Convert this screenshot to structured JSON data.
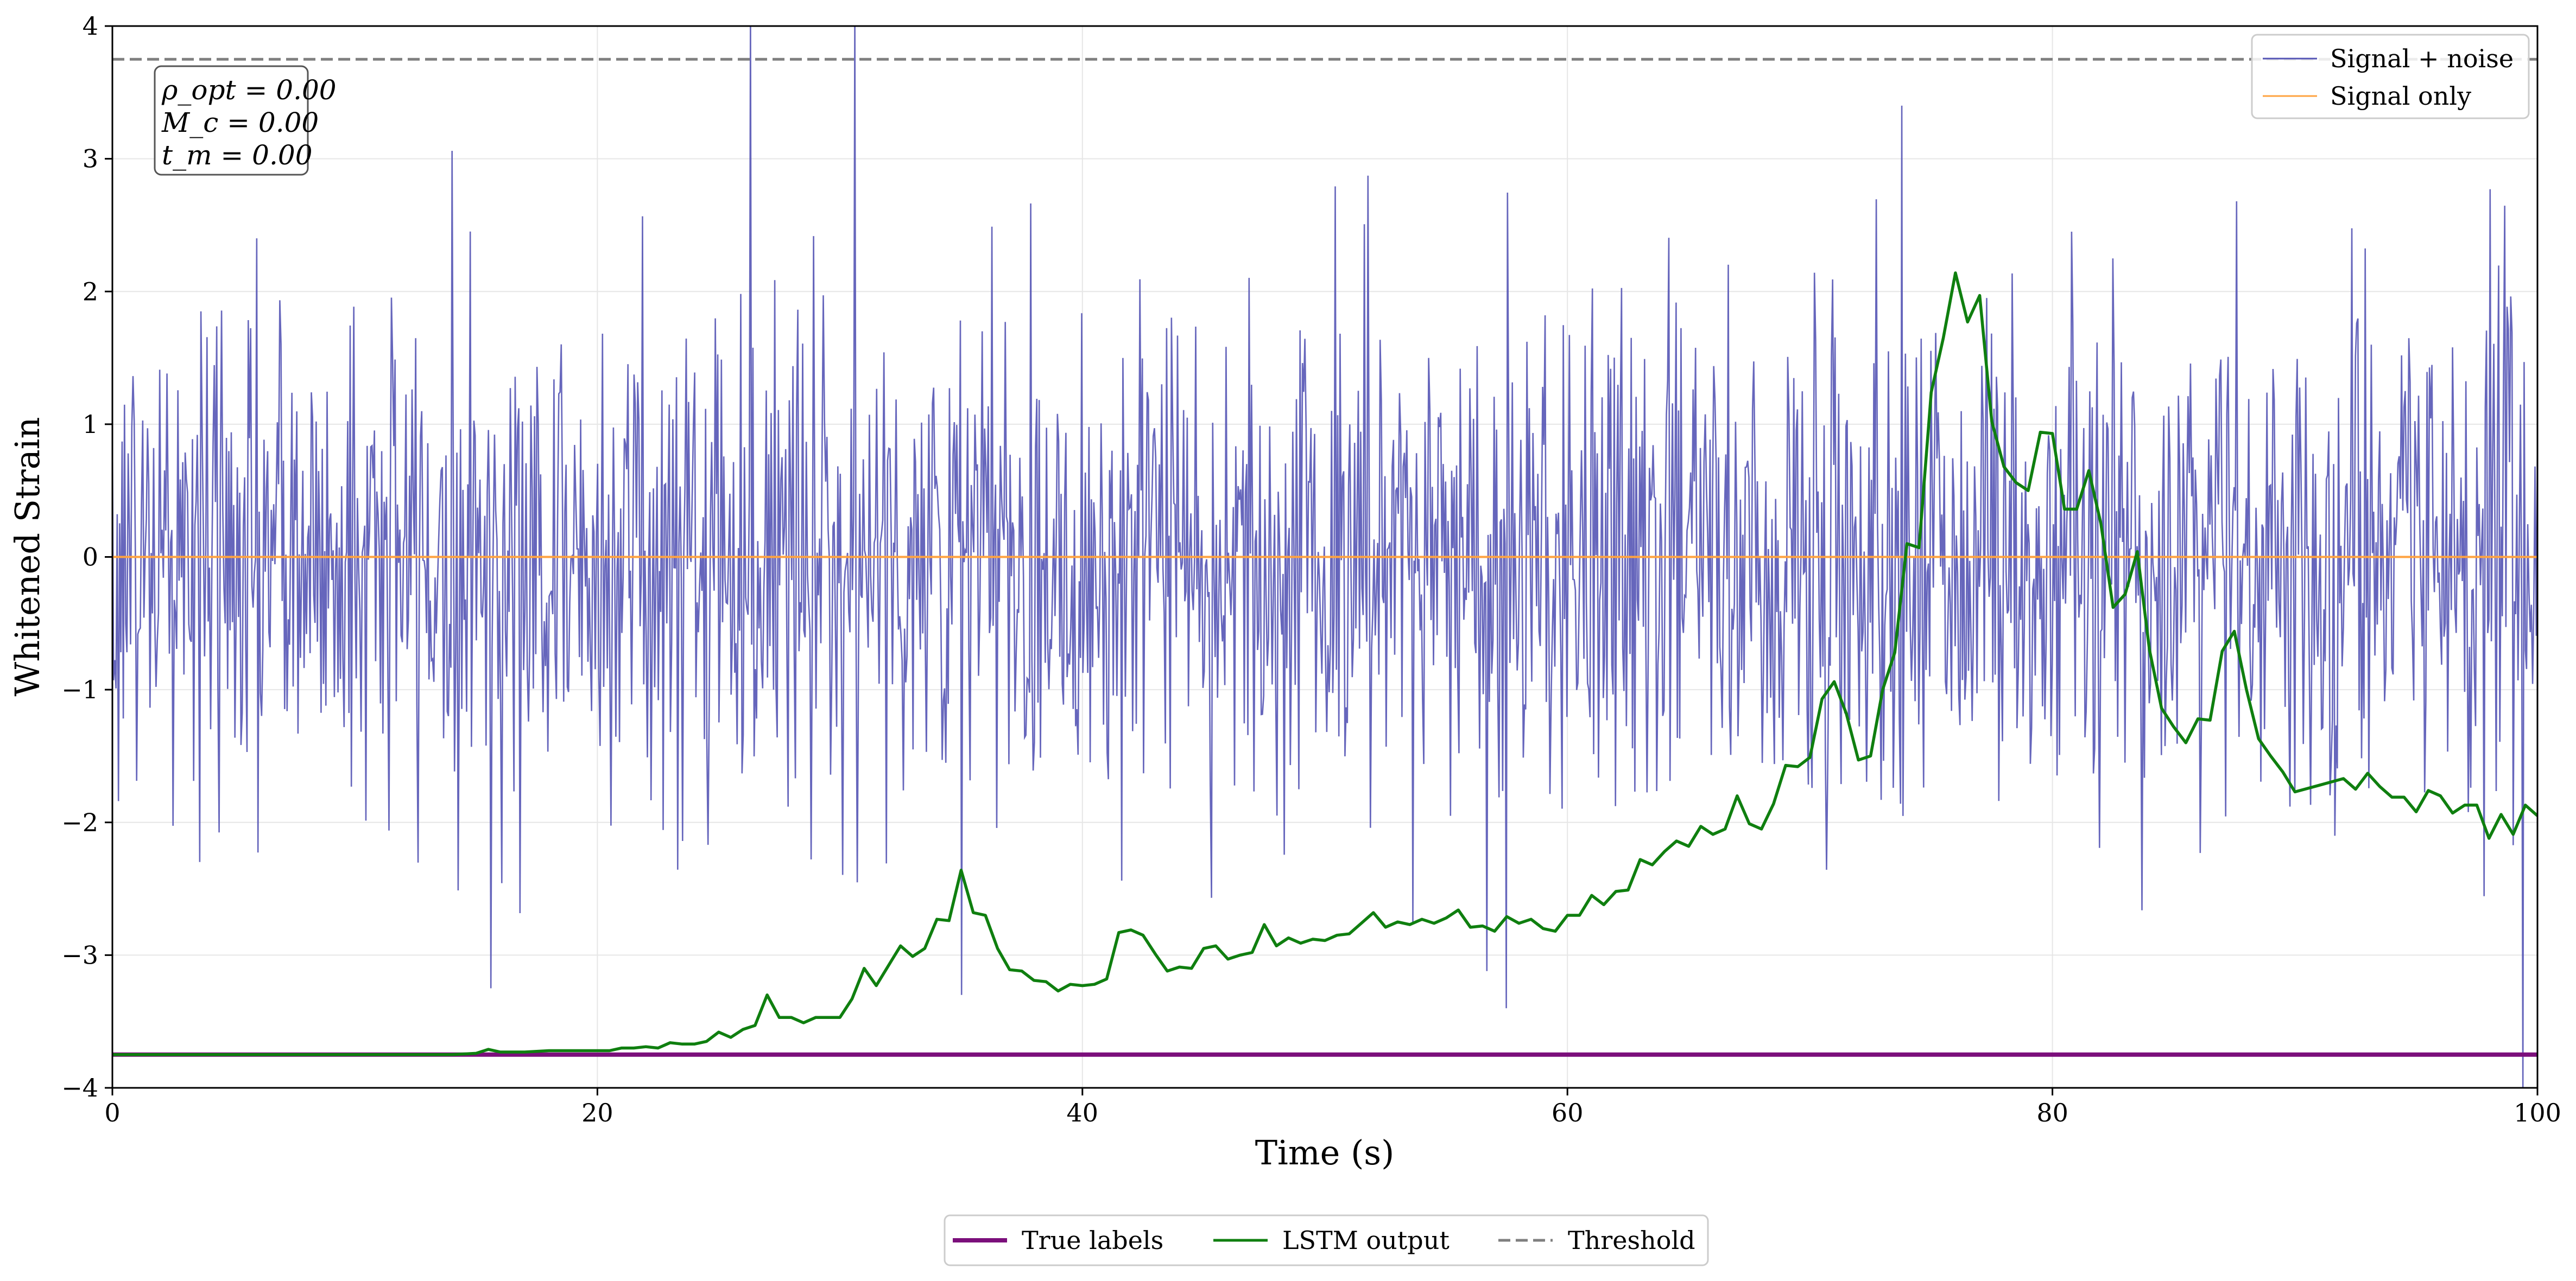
{
  "chart_data": {
    "type": "line",
    "title": "",
    "xlabel": "Time (s)",
    "ylabel": "Whitened Strain",
    "xlim": [
      0,
      100
    ],
    "ylim": [
      -4,
      4
    ],
    "xticks": [
      0,
      20,
      40,
      60,
      80,
      100
    ],
    "yticks": [
      -4,
      -3,
      -2,
      -1,
      0,
      1,
      2,
      3,
      4
    ],
    "grid": true,
    "colors": {
      "noisy": "#5555b5",
      "signal": "#ffa340",
      "labels": "#7b0f7b",
      "lstm": "#0f7f0f",
      "threshold": "#7f7f7f"
    },
    "annotation": [
      "ρ_opt = 0.00",
      "M_c = 0.00",
      "t_m = 0.00"
    ],
    "legend_upper": {
      "placement": "top-right",
      "entries": [
        "Signal + noise",
        "Signal only"
      ]
    },
    "legend_lower": {
      "placement": "bottom-center",
      "entries": [
        "True labels",
        "LSTM output",
        "Threshold"
      ]
    },
    "series": [
      {
        "name": "Signal + noise",
        "kind": "noise",
        "samples": 2000,
        "std": 1.0,
        "spikes": [
          {
            "x": 15.6,
            "y": -3.25
          },
          {
            "x": 26.3,
            "y": 4.1
          },
          {
            "x": 30.6,
            "y": 4.1
          },
          {
            "x": 35.0,
            "y": -3.3
          },
          {
            "x": 57.5,
            "y": -3.4
          },
          {
            "x": 73.8,
            "y": 3.4
          },
          {
            "x": 99.4,
            "y": -4.0
          }
        ]
      },
      {
        "name": "Signal only",
        "x": [
          0,
          100
        ],
        "y": [
          0,
          0
        ]
      },
      {
        "name": "True labels",
        "x": [
          0,
          100
        ],
        "y": [
          -3.75,
          -3.75
        ]
      },
      {
        "name": "LSTM output",
        "x": [
          0,
          5,
          10,
          14,
          15,
          15.5,
          16,
          17,
          18,
          19,
          20,
          20.5,
          21,
          21.5,
          22,
          22.5,
          23,
          23.5,
          24,
          24.5,
          25,
          25.5,
          26,
          26.5,
          27,
          27.5,
          28,
          28.5,
          29,
          29.5,
          30,
          30.5,
          31,
          31.5,
          32,
          32.5,
          33,
          33.5,
          34,
          34.5,
          35,
          35.5,
          36,
          36.5,
          37,
          37.5,
          38,
          38.5,
          39,
          39.5,
          40,
          40.5,
          41,
          41.5,
          42,
          42.5,
          43,
          43.5,
          44,
          44.5,
          45,
          45.5,
          46,
          46.5,
          47,
          47.5,
          48,
          48.5,
          49,
          49.5,
          50,
          50.5,
          51,
          51.5,
          52,
          52.5,
          53,
          53.5,
          54,
          54.5,
          55,
          55.5,
          56,
          56.5,
          57,
          57.5,
          58,
          58.5,
          59,
          59.5,
          60,
          60.5,
          61,
          61.5,
          62,
          62.5,
          63,
          63.5,
          64,
          64.5,
          65,
          65.5,
          66,
          66.5,
          67,
          67.5,
          68,
          68.5,
          69,
          69.5,
          70,
          70.5,
          71,
          71.5,
          72,
          72.5,
          73,
          73.5,
          74,
          74.5,
          75,
          75.5,
          76,
          76.5,
          77,
          77.5,
          78,
          78.5,
          79,
          79.5,
          80,
          80.5,
          81,
          81.5,
          82,
          82.5,
          83,
          83.5,
          84,
          84.5,
          85,
          85.5,
          86,
          86.5,
          87,
          87.5,
          88,
          88.5,
          89,
          89.5,
          90,
          91,
          92,
          92.5,
          93,
          93.5,
          94,
          94.5,
          95,
          95.5,
          96,
          96.5,
          97,
          97.5,
          98,
          98.5,
          99,
          99.5,
          100
        ],
        "y": [
          -3.75,
          -3.75,
          -3.75,
          -3.75,
          -3.74,
          -3.71,
          -3.73,
          -3.73,
          -3.72,
          -3.72,
          -3.72,
          -3.72,
          -3.7,
          -3.7,
          -3.69,
          -3.7,
          -3.66,
          -3.67,
          -3.67,
          -3.65,
          -3.58,
          -3.62,
          -3.56,
          -3.53,
          -3.3,
          -3.47,
          -3.47,
          -3.51,
          -3.47,
          -3.47,
          -3.47,
          -3.33,
          -3.1,
          -3.23,
          -3.08,
          -2.93,
          -3.01,
          -2.95,
          -2.73,
          -2.74,
          -2.36,
          -2.68,
          -2.7,
          -2.95,
          -3.11,
          -3.12,
          -3.19,
          -3.2,
          -3.27,
          -3.22,
          -3.23,
          -3.22,
          -3.18,
          -2.83,
          -2.81,
          -2.85,
          -2.99,
          -3.12,
          -3.09,
          -3.1,
          -2.95,
          -2.93,
          -3.03,
          -3.0,
          -2.98,
          -2.77,
          -2.93,
          -2.87,
          -2.91,
          -2.88,
          -2.89,
          -2.85,
          -2.84,
          -2.76,
          -2.68,
          -2.79,
          -2.75,
          -2.77,
          -2.73,
          -2.76,
          -2.72,
          -2.66,
          -2.79,
          -2.78,
          -2.82,
          -2.71,
          -2.76,
          -2.73,
          -2.8,
          -2.82,
          -2.7,
          -2.7,
          -2.55,
          -2.62,
          -2.52,
          -2.51,
          -2.28,
          -2.32,
          -2.22,
          -2.14,
          -2.18,
          -2.03,
          -2.09,
          -2.05,
          -1.8,
          -2.01,
          -2.05,
          -1.86,
          -1.57,
          -1.58,
          -1.51,
          -1.07,
          -0.94,
          -1.18,
          -1.53,
          -1.5,
          -1.0,
          -0.72,
          0.1,
          0.07,
          1.24,
          1.65,
          2.14,
          1.77,
          1.97,
          1.02,
          0.68,
          0.56,
          0.5,
          0.94,
          0.93,
          0.36,
          0.36,
          0.65,
          0.25,
          -0.38,
          -0.28,
          0.04,
          -0.7,
          -1.14,
          -1.28,
          -1.4,
          -1.22,
          -1.23,
          -0.71,
          -0.56,
          -1.0,
          -1.37,
          -1.5,
          -1.62,
          -1.77,
          -1.72,
          -1.67,
          -1.75,
          -1.63,
          -1.73,
          -1.81,
          -1.81,
          -1.92,
          -1.76,
          -1.8,
          -1.93,
          -1.87,
          -1.87,
          -2.12,
          -1.94,
          -2.09,
          -1.87,
          -1.95
        ]
      },
      {
        "name": "Threshold",
        "x": [
          0,
          100
        ],
        "y": [
          3.75,
          3.75
        ]
      }
    ]
  }
}
